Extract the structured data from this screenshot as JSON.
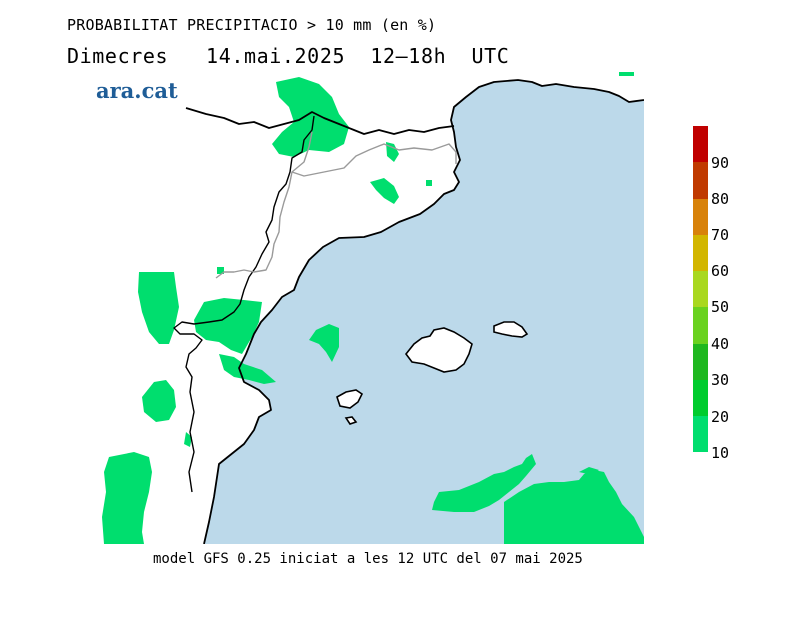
{
  "title": {
    "line1": "PROBABILITAT PRECIPITACIO > 10 mm (en %)",
    "line2": "Dimecres   14.mai.2025  12–18h  UTC"
  },
  "brand": "ara.cat",
  "footer": "model GFS 0.25 iniciat a les 12 UTC del 07 mai 2025",
  "legend": {
    "colors": [
      "#00de6e",
      "#00cc2e",
      "#1fb81f",
      "#6ad21f",
      "#a9d81f",
      "#d2b600",
      "#d8820a",
      "#c04800",
      "#c00000",
      "#c00000"
    ],
    "labels": [
      "10",
      "20",
      "30",
      "40",
      "50",
      "60",
      "70",
      "80",
      "90"
    ]
  },
  "map": {
    "sea_color": "#bcd9ea",
    "precip_color": "#00de6e"
  }
}
